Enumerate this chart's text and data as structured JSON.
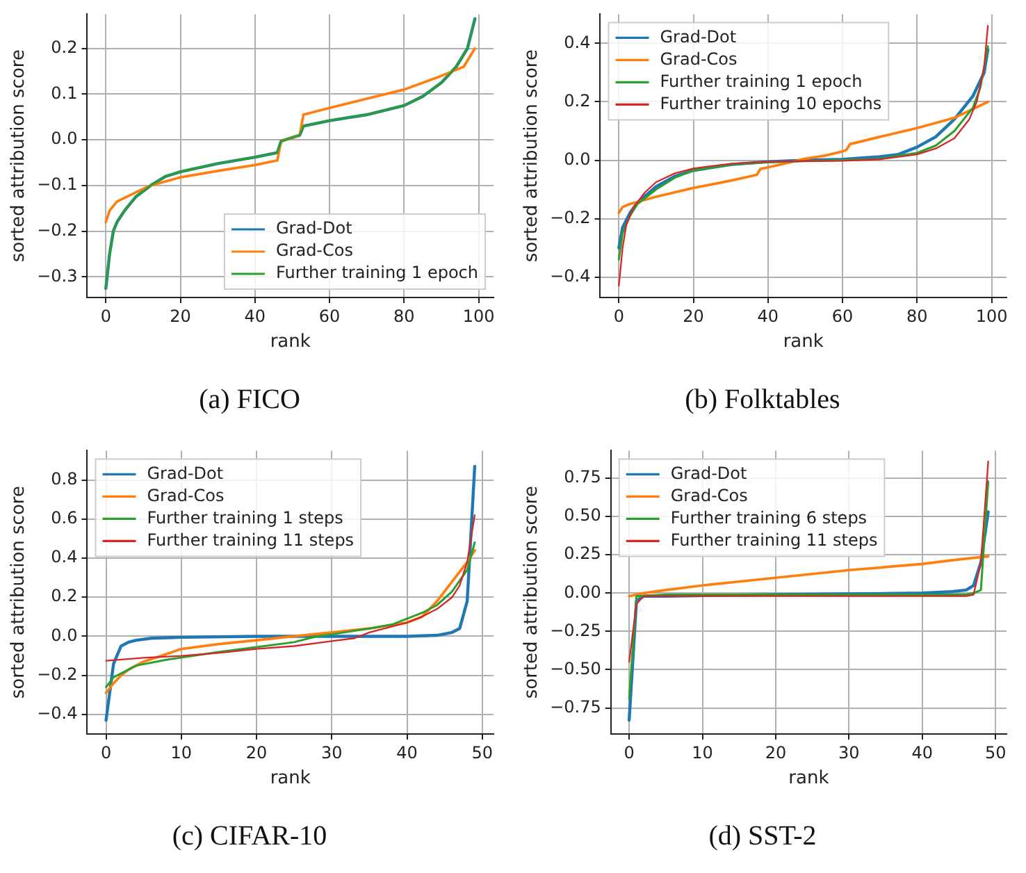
{
  "chart_data": [
    {
      "type": "line",
      "title": "(a) FICO",
      "xlabel": "rank",
      "ylabel": "sorted attribution score",
      "grid": true,
      "legend": "bottom right",
      "marker": "none",
      "line_style": "solid",
      "xlim": [
        -5,
        104
      ],
      "xticks": [
        0,
        20,
        40,
        60,
        80,
        100
      ],
      "ylim": [
        -0.345,
        0.275
      ],
      "yticks": [
        {
          "value": -0.3,
          "label": "−0.3"
        },
        {
          "value": -0.2,
          "label": "−0.2"
        },
        {
          "value": -0.1,
          "label": "−0.1"
        },
        {
          "value": 0,
          "label": "0.0"
        },
        {
          "value": 0.1,
          "label": "0.1"
        },
        {
          "value": 0.2,
          "label": "0.2"
        }
      ],
      "series": [
        {
          "name": "Grad-Dot",
          "color": "#1f77b4",
          "x": [
            0,
            1,
            2,
            3,
            5,
            8,
            12,
            16,
            20,
            30,
            40,
            46,
            47,
            50,
            52,
            53,
            60,
            70,
            80,
            85,
            90,
            94,
            97,
            99
          ],
          "values": [
            -0.325,
            -0.25,
            -0.2,
            -0.18,
            -0.155,
            -0.125,
            -0.1,
            -0.08,
            -0.07,
            -0.052,
            -0.038,
            -0.028,
            -0.003,
            0.005,
            0.01,
            0.03,
            0.042,
            0.055,
            0.075,
            0.095,
            0.125,
            0.16,
            0.2,
            0.265
          ]
        },
        {
          "name": "Grad-Cos",
          "color": "#ff7f0e",
          "x": [
            0,
            1,
            3,
            8,
            12,
            20,
            30,
            40,
            46,
            47,
            50,
            52,
            53,
            60,
            70,
            80,
            90,
            96,
            99
          ],
          "values": [
            -0.18,
            -0.155,
            -0.135,
            -0.115,
            -0.1,
            -0.082,
            -0.068,
            -0.055,
            -0.045,
            -0.003,
            0.005,
            0.01,
            0.055,
            0.07,
            0.09,
            0.11,
            0.14,
            0.16,
            0.2
          ]
        },
        {
          "name": "Further training 1 epoch",
          "color": "#2ca02c",
          "x": [
            0,
            1,
            2,
            3,
            5,
            8,
            12,
            16,
            20,
            30,
            40,
            46,
            47,
            50,
            52,
            53,
            60,
            70,
            80,
            85,
            90,
            94,
            97,
            99
          ],
          "values": [
            -0.325,
            -0.25,
            -0.2,
            -0.18,
            -0.155,
            -0.125,
            -0.1,
            -0.08,
            -0.07,
            -0.052,
            -0.038,
            -0.028,
            -0.003,
            0.005,
            0.01,
            0.03,
            0.042,
            0.055,
            0.075,
            0.095,
            0.125,
            0.16,
            0.2,
            0.265
          ]
        }
      ]
    },
    {
      "type": "line",
      "title": "(b) Folktables",
      "xlabel": "rank",
      "ylabel": "sorted attribution score",
      "grid": true,
      "legend": "top left",
      "marker": "none",
      "line_style": "solid",
      "xlim": [
        -5,
        104
      ],
      "xticks": [
        0,
        20,
        40,
        60,
        80,
        100
      ],
      "ylim": [
        -0.47,
        0.5
      ],
      "yticks": [
        {
          "value": -0.4,
          "label": "−0.4"
        },
        {
          "value": -0.2,
          "label": "−0.2"
        },
        {
          "value": 0,
          "label": "0.0"
        },
        {
          "value": 0.2,
          "label": "0.2"
        },
        {
          "value": 0.4,
          "label": "0.4"
        }
      ],
      "series": [
        {
          "name": "Grad-Dot",
          "color": "#1f77b4",
          "x": [
            0,
            1,
            3,
            5,
            10,
            15,
            20,
            30,
            40,
            50,
            60,
            70,
            75,
            80,
            85,
            90,
            95,
            98,
            99
          ],
          "values": [
            -0.3,
            -0.23,
            -0.18,
            -0.145,
            -0.09,
            -0.055,
            -0.035,
            -0.015,
            -0.005,
            0,
            0.003,
            0.012,
            0.02,
            0.045,
            0.08,
            0.14,
            0.22,
            0.3,
            0.38
          ]
        },
        {
          "name": "Grad-Cos",
          "color": "#ff7f0e",
          "x": [
            0,
            1,
            3,
            10,
            20,
            30,
            37,
            38,
            45,
            50,
            55,
            60,
            61,
            62,
            70,
            80,
            90,
            99
          ],
          "values": [
            -0.18,
            -0.16,
            -0.15,
            -0.125,
            -0.095,
            -0.07,
            -0.05,
            -0.03,
            -0.01,
            0.005,
            0.015,
            0.03,
            0.035,
            0.055,
            0.08,
            0.11,
            0.145,
            0.2
          ]
        },
        {
          "name": "Further training 1 epoch",
          "color": "#2ca02c",
          "x": [
            0,
            1,
            3,
            5,
            10,
            15,
            20,
            30,
            40,
            50,
            60,
            70,
            80,
            85,
            90,
            95,
            97,
            99
          ],
          "values": [
            -0.34,
            -0.25,
            -0.19,
            -0.15,
            -0.1,
            -0.06,
            -0.035,
            -0.015,
            -0.007,
            -0.003,
            0,
            0.005,
            0.025,
            0.05,
            0.1,
            0.18,
            0.25,
            0.39
          ]
        },
        {
          "name": "Further training 10 epochs",
          "color": "#d62728",
          "x": [
            0,
            1,
            2,
            4,
            7,
            10,
            15,
            20,
            30,
            40,
            50,
            60,
            70,
            80,
            85,
            90,
            94,
            96,
            98,
            99
          ],
          "values": [
            -0.43,
            -0.3,
            -0.22,
            -0.16,
            -0.11,
            -0.075,
            -0.045,
            -0.028,
            -0.012,
            -0.005,
            -0.003,
            -0.002,
            0.003,
            0.02,
            0.04,
            0.075,
            0.14,
            0.2,
            0.32,
            0.46
          ]
        }
      ]
    },
    {
      "type": "line",
      "title": "(c) CIFAR-10",
      "xlabel": "rank",
      "ylabel": "sorted attribution score",
      "grid": true,
      "legend": "top left",
      "marker": "none",
      "line_style": "solid",
      "xlim": [
        -2.5,
        51.5
      ],
      "xticks": [
        0,
        10,
        20,
        30,
        40,
        50
      ],
      "ylim": [
        -0.5,
        0.95
      ],
      "yticks": [
        {
          "value": -0.4,
          "label": "−0.4"
        },
        {
          "value": -0.2,
          "label": "−0.2"
        },
        {
          "value": 0,
          "label": "0.0"
        },
        {
          "value": 0.2,
          "label": "0.2"
        },
        {
          "value": 0.4,
          "label": "0.4"
        },
        {
          "value": 0.6,
          "label": "0.6"
        },
        {
          "value": 0.8,
          "label": "0.8"
        }
      ],
      "series": [
        {
          "name": "Grad-Dot",
          "color": "#1f77b4",
          "x": [
            0,
            1,
            2,
            3,
            4,
            6,
            10,
            20,
            30,
            40,
            44,
            46,
            47,
            48,
            49
          ],
          "values": [
            -0.43,
            -0.14,
            -0.05,
            -0.03,
            -0.02,
            -0.01,
            -0.005,
            0,
            0,
            0,
            0.005,
            0.02,
            0.04,
            0.18,
            0.87
          ]
        },
        {
          "name": "Grad-Cos",
          "color": "#ff7f0e",
          "x": [
            0,
            1,
            2,
            3,
            5,
            10,
            15,
            20,
            25,
            30,
            35,
            40,
            42,
            43,
            44,
            46,
            48,
            49
          ],
          "values": [
            -0.29,
            -0.24,
            -0.2,
            -0.17,
            -0.13,
            -0.065,
            -0.04,
            -0.02,
            0,
            0.02,
            0.04,
            0.07,
            0.1,
            0.14,
            0.18,
            0.28,
            0.38,
            0.44
          ]
        },
        {
          "name": "Further training 1 steps",
          "color": "#2ca02c",
          "x": [
            0,
            1,
            2,
            4,
            8,
            15,
            20,
            25,
            28,
            30,
            35,
            38,
            40,
            42,
            44,
            46,
            48,
            49
          ],
          "values": [
            -0.26,
            -0.21,
            -0.19,
            -0.15,
            -0.12,
            -0.08,
            -0.055,
            -0.03,
            0,
            0.01,
            0.04,
            0.06,
            0.09,
            0.12,
            0.16,
            0.23,
            0.34,
            0.48
          ]
        },
        {
          "name": "Further training 11 steps",
          "color": "#d62728",
          "x": [
            0,
            5,
            10,
            15,
            20,
            25,
            30,
            33,
            35,
            38,
            40,
            42,
            44,
            46,
            47,
            48,
            49
          ],
          "values": [
            -0.125,
            -0.11,
            -0.1,
            -0.085,
            -0.065,
            -0.05,
            -0.025,
            -0.01,
            0.02,
            0.05,
            0.07,
            0.1,
            0.14,
            0.2,
            0.26,
            0.38,
            0.62
          ]
        }
      ]
    },
    {
      "type": "line",
      "title": "(d) SST-2",
      "xlabel": "rank",
      "ylabel": "sorted attribution score",
      "grid": true,
      "legend": "top left",
      "marker": "none",
      "line_style": "solid",
      "xlim": [
        -2.5,
        51.5
      ],
      "xticks": [
        0,
        10,
        20,
        30,
        40,
        50
      ],
      "ylim": [
        -0.92,
        0.93
      ],
      "yticks": [
        {
          "value": -0.75,
          "label": "−0.75"
        },
        {
          "value": -0.5,
          "label": "−0.50"
        },
        {
          "value": -0.25,
          "label": "−0.25"
        },
        {
          "value": 0,
          "label": "0.00"
        },
        {
          "value": 0.25,
          "label": "0.25"
        },
        {
          "value": 0.5,
          "label": "0.50"
        },
        {
          "value": 0.75,
          "label": "0.75"
        }
      ],
      "series": [
        {
          "name": "Grad-Dot",
          "color": "#1f77b4",
          "x": [
            0,
            1,
            2,
            5,
            20,
            40,
            44,
            46,
            47,
            48,
            49
          ],
          "values": [
            -0.83,
            -0.05,
            -0.02,
            -0.02,
            -0.01,
            0,
            0.01,
            0.02,
            0.05,
            0.2,
            0.53
          ]
        },
        {
          "name": "Grad-Cos",
          "color": "#ff7f0e",
          "x": [
            0,
            1,
            2,
            5,
            10,
            20,
            30,
            40,
            45,
            49
          ],
          "values": [
            -0.02,
            -0.01,
            0,
            0.02,
            0.05,
            0.1,
            0.15,
            0.19,
            0.22,
            0.24
          ]
        },
        {
          "name": "Further training 6 steps",
          "color": "#2ca02c",
          "x": [
            0,
            1,
            5,
            20,
            40,
            46,
            47,
            48,
            49
          ],
          "values": [
            -0.69,
            -0.02,
            -0.01,
            -0.01,
            -0.01,
            -0.01,
            0,
            0.02,
            0.73
          ]
        },
        {
          "name": "Further training 11 steps",
          "color": "#d62728",
          "x": [
            0,
            1,
            2,
            5,
            20,
            40,
            46,
            47,
            48,
            49
          ],
          "values": [
            -0.45,
            -0.07,
            -0.02,
            -0.02,
            -0.02,
            -0.02,
            -0.02,
            -0.01,
            0.2,
            0.86
          ]
        }
      ]
    }
  ]
}
